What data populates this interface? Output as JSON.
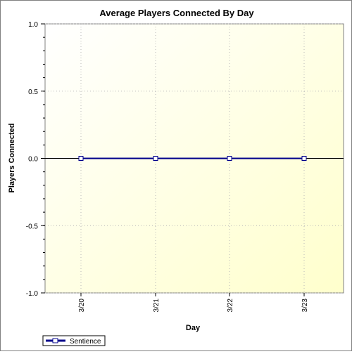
{
  "chart_data": {
    "type": "line",
    "title": "Average Players Connected By Day",
    "xlabel": "Day",
    "ylabel": "Players Connected",
    "categories": [
      "3/20",
      "3/21",
      "3/22",
      "3/23"
    ],
    "y_ticks": [
      "1.0",
      "0.5",
      "0.0",
      "-0.5",
      "-1.0"
    ],
    "ylim": [
      -1.0,
      1.0
    ],
    "grid": true,
    "legend_position": "bottom-left",
    "series": [
      {
        "name": "Sentience",
        "values": [
          0,
          0,
          0,
          0
        ],
        "color": "#00008b"
      }
    ],
    "colors": {
      "plot_bg_light": "#ffffe0",
      "plot_bg_dark": "#ffffc8",
      "series_line": "#00008b",
      "marker_fill": "#ffffff"
    }
  }
}
